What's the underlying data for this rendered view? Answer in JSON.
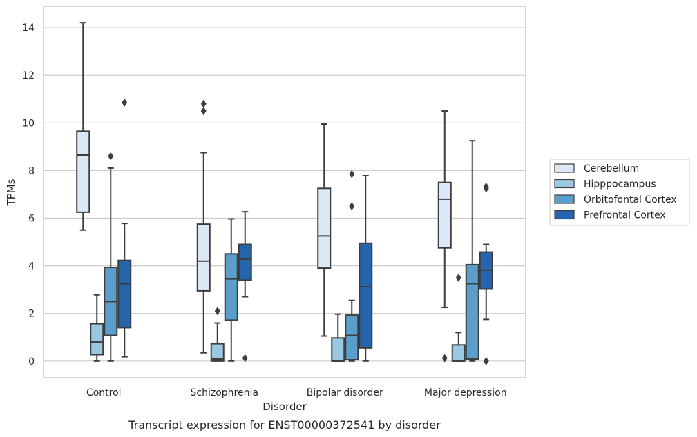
{
  "chart_data": {
    "type": "box",
    "xlabel": "Disorder",
    "ylabel": "TPMs",
    "caption": "Transcript expression for ENST00000372541 by disorder",
    "ylim": [
      -0.7,
      14.9
    ],
    "yticks": [
      0,
      2,
      4,
      6,
      8,
      10,
      12,
      14
    ],
    "grid": "horizontal",
    "legend_position": "right",
    "categories": [
      "Control",
      "Schizophrenia",
      "Bipolar disorder",
      "Major depression"
    ],
    "series": [
      {
        "name": "Cerebellum",
        "color": "#dbe9f6",
        "boxes": [
          {
            "whislo": 5.5,
            "q1": 6.25,
            "med": 8.65,
            "q3": 9.65,
            "whishi": 14.2,
            "fliers": []
          },
          {
            "whislo": 0.35,
            "q1": 2.95,
            "med": 4.2,
            "q3": 5.75,
            "whishi": 8.75,
            "fliers": [
              10.5,
              10.8
            ]
          },
          {
            "whislo": 1.05,
            "q1": 3.9,
            "med": 5.25,
            "q3": 7.25,
            "whishi": 9.95,
            "fliers": []
          },
          {
            "whislo": 2.25,
            "q1": 4.75,
            "med": 6.8,
            "q3": 7.5,
            "whishi": 10.5,
            "fliers": [
              0.12
            ]
          }
        ]
      },
      {
        "name": "Hipppocampus",
        "color": "#9ac8e0",
        "boxes": [
          {
            "whislo": 0.0,
            "q1": 0.27,
            "med": 0.8,
            "q3": 1.57,
            "whishi": 2.78,
            "fliers": []
          },
          {
            "whislo": 0.0,
            "q1": 0.0,
            "med": 0.08,
            "q3": 0.73,
            "whishi": 1.6,
            "fliers": [
              2.1
            ]
          },
          {
            "whislo": 0.0,
            "q1": 0.0,
            "med": 0.0,
            "q3": 0.97,
            "whishi": 1.97,
            "fliers": []
          },
          {
            "whislo": 0.0,
            "q1": 0.0,
            "med": 0.0,
            "q3": 0.68,
            "whishi": 1.2,
            "fliers": [
              3.5
            ]
          }
        ]
      },
      {
        "name": "Orbitofontal Cortex",
        "color": "#5a9ecc",
        "boxes": [
          {
            "whislo": 0.0,
            "q1": 1.08,
            "med": 2.5,
            "q3": 3.93,
            "whishi": 8.1,
            "fliers": [
              8.6
            ]
          },
          {
            "whislo": 0.0,
            "q1": 1.72,
            "med": 3.45,
            "q3": 4.5,
            "whishi": 5.97,
            "fliers": []
          },
          {
            "whislo": 0.0,
            "q1": 0.05,
            "med": 1.08,
            "q3": 1.93,
            "whishi": 2.55,
            "fliers": [
              6.5,
              7.85
            ]
          },
          {
            "whislo": 0.0,
            "q1": 0.08,
            "med": 3.25,
            "q3": 4.05,
            "whishi": 9.25,
            "fliers": []
          }
        ]
      },
      {
        "name": "Prefrontal Cortex",
        "color": "#2565ab",
        "boxes": [
          {
            "whislo": 0.18,
            "q1": 1.4,
            "med": 3.25,
            "q3": 4.23,
            "whishi": 5.78,
            "fliers": [
              10.85
            ]
          },
          {
            "whislo": 2.7,
            "q1": 3.4,
            "med": 4.28,
            "q3": 4.9,
            "whishi": 6.27,
            "fliers": [
              0.12
            ]
          },
          {
            "whislo": 0.0,
            "q1": 0.55,
            "med": 3.12,
            "q3": 4.95,
            "whishi": 7.78,
            "fliers": []
          },
          {
            "whislo": 1.75,
            "q1": 3.02,
            "med": 3.82,
            "q3": 4.58,
            "whishi": 4.9,
            "fliers": [
              0.0,
              7.25,
              7.32
            ]
          }
        ]
      }
    ]
  }
}
